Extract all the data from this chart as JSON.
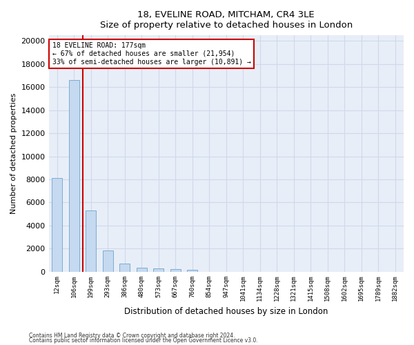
{
  "title": "18, EVELINE ROAD, MITCHAM, CR4 3LE",
  "subtitle": "Size of property relative to detached houses in London",
  "xlabel": "Distribution of detached houses by size in London",
  "ylabel": "Number of detached properties",
  "categories": [
    "12sqm",
    "106sqm",
    "199sqm",
    "293sqm",
    "386sqm",
    "480sqm",
    "573sqm",
    "667sqm",
    "760sqm",
    "854sqm",
    "947sqm",
    "1041sqm",
    "1134sqm",
    "1228sqm",
    "1321sqm",
    "1415sqm",
    "1508sqm",
    "1602sqm",
    "1695sqm",
    "1789sqm",
    "1882sqm"
  ],
  "values": [
    8100,
    16600,
    5300,
    1850,
    680,
    350,
    275,
    220,
    170,
    0,
    0,
    0,
    0,
    0,
    0,
    0,
    0,
    0,
    0,
    0,
    0
  ],
  "bar_color": "#c5d9f0",
  "bar_edge_color": "#7aadcf",
  "vline_x": 1.5,
  "vline_color": "#cc0000",
  "annotation_text": "18 EVELINE ROAD: 177sqm\n← 67% of detached houses are smaller (21,954)\n33% of semi-detached houses are larger (10,891) →",
  "annotation_box_color": "#ffffff",
  "annotation_box_edge": "#cc0000",
  "ylim": [
    0,
    20500
  ],
  "yticks": [
    0,
    2000,
    4000,
    6000,
    8000,
    10000,
    12000,
    14000,
    16000,
    18000,
    20000
  ],
  "bg_color": "#e8eef8",
  "grid_color": "#d0d8ea",
  "footer_line1": "Contains HM Land Registry data © Crown copyright and database right 2024.",
  "footer_line2": "Contains public sector information licensed under the Open Government Licence v3.0."
}
